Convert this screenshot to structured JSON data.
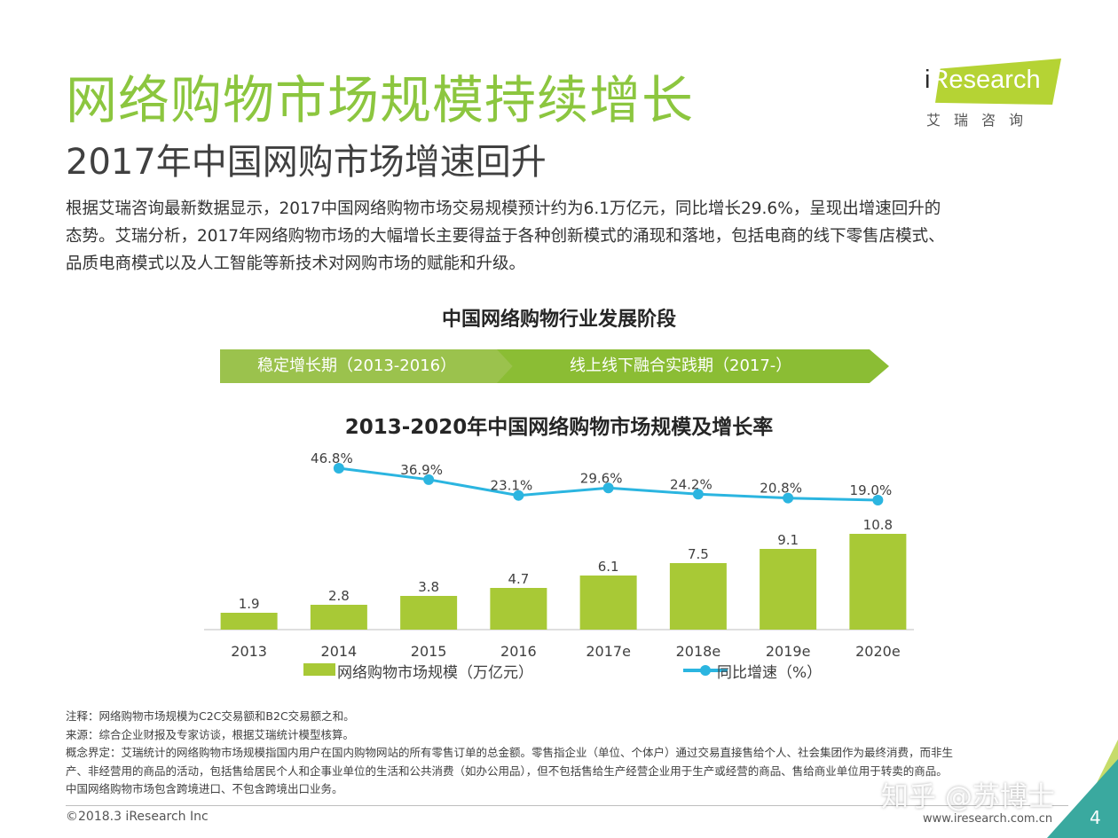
{
  "header": {
    "title": "网络购物市场规模持续增长",
    "subtitle": "2017年中国网购市场增速回升"
  },
  "logo": {
    "initial": "i",
    "text": "Research",
    "sub": "艾瑞咨询",
    "color": "#b5d334"
  },
  "intro": [
    "根据艾瑞咨询最新数据显示，2017中国网络购物市场交易规模预计约为6.1万亿元，同比增长29.6%，呈现出增速回升的",
    "态势。艾瑞分析，2017年网络购物市场的大幅增长主要得益于各种创新模式的涌现和落地，包括电商的线下零售店模式、",
    "品质电商模式以及人工智能等新技术对网购市场的赋能和升级。"
  ],
  "stages": {
    "title": "中国网络购物行业发展阶段",
    "items": [
      "稳定增长期（2013-2016）",
      "线上线下融合实践期（2017-）"
    ]
  },
  "chart_data": {
    "type": "bar",
    "title": "2013-2020年中国网络购物市场规模及增长率",
    "categories": [
      "2013",
      "2014",
      "2015",
      "2016",
      "2017e",
      "2018e",
      "2019e",
      "2020e"
    ],
    "series": [
      {
        "name": "网络购物市场规模（万亿元）",
        "type": "bar",
        "values": [
          1.9,
          2.8,
          3.8,
          4.7,
          6.1,
          7.5,
          9.1,
          10.8
        ],
        "labels": [
          "1.9",
          "2.8",
          "3.8",
          "4.7",
          "6.1",
          "7.5",
          "9.1",
          "10.8"
        ],
        "color": "#a8c936"
      },
      {
        "name": "同比增速（%）",
        "type": "line",
        "values": [
          null,
          46.8,
          36.9,
          23.1,
          29.6,
          24.2,
          20.8,
          19.0
        ],
        "labels": [
          "",
          "46.8%",
          "36.9%",
          "23.1%",
          "29.6%",
          "24.2%",
          "20.8%",
          "19.0%"
        ],
        "color": "#2bb5e0"
      }
    ],
    "grid": false,
    "legend": "bottom"
  },
  "notes": [
    "注释：网络购物市场规模为C2C交易额和B2C交易额之和。",
    "来源：综合企业财报及专家访谈，根据艾瑞统计模型核算。",
    "概念界定：艾瑞统计的网络购物市场规模指国内用户在国内购物网站的所有零售订单的总金额。零售指企业（单位、个体户）通过交易直接售给个人、社会集团作为最终消费，而非生",
    "产、非经营用的商品的活动，包括售给居民个人和企事业单位的生活和公共消费（如办公用品），但不包括售给生产经营企业用于生产或经营的商品、售给商业单位用于转卖的商品。",
    "中国网络购物市场包含跨境进口、不包含跨境出口业务。"
  ],
  "footer": {
    "copyright": "©2018.3 iResearch Inc",
    "website": "www.iresearch.com.cn",
    "page": "4",
    "watermark": "知乎 @苏博士"
  }
}
